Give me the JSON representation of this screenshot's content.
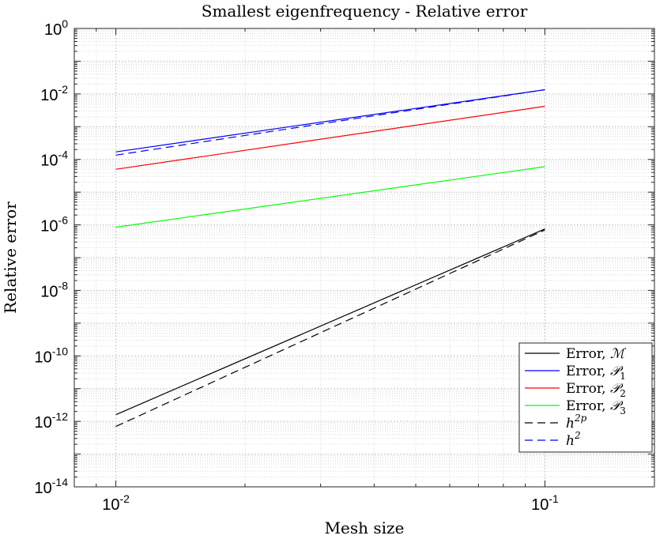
{
  "chart_data": {
    "type": "line",
    "title": "Smallest eigenfrequency - Relative error",
    "xlabel": "Mesh size",
    "ylabel": "Relative error",
    "xscale": "log",
    "yscale": "log",
    "xlim": [
      0.008,
      0.18
    ],
    "ylim": [
      1e-14,
      1
    ],
    "grid": true,
    "minor_grid": true,
    "legend_location": "bottom-right",
    "x_tick_labels": [
      {
        "value": 0.01,
        "base": "10",
        "exp": "-2"
      },
      {
        "value": 0.1,
        "base": "10",
        "exp": "-1"
      }
    ],
    "y_tick_labels": [
      {
        "value": 1,
        "base": "10",
        "exp": "0"
      },
      {
        "value": 0.01,
        "base": "10",
        "exp": "-2"
      },
      {
        "value": 0.0001,
        "base": "10",
        "exp": "-4"
      },
      {
        "value": 1e-06,
        "base": "10",
        "exp": "-6"
      },
      {
        "value": 1e-08,
        "base": "10",
        "exp": "-8"
      },
      {
        "value": 1e-10,
        "base": "10",
        "exp": "-10"
      },
      {
        "value": 1e-12,
        "base": "10",
        "exp": "-12"
      },
      {
        "value": 1e-14,
        "base": "10",
        "exp": "-14"
      }
    ],
    "series": [
      {
        "name": "Error, ℳ",
        "label_text": "Error,",
        "symbol": "ℳ",
        "subscript": "",
        "superscript": "",
        "color": "#000000",
        "dash": "solid",
        "x": [
          0.01,
          0.1
        ],
        "y": [
          1.6e-12,
          7.5e-07
        ]
      },
      {
        "name": "Error, 𝒫1",
        "label_text": "Error,",
        "symbol": "𝒫",
        "subscript": "1",
        "superscript": "",
        "color": "#0000ff",
        "dash": "solid",
        "x": [
          0.01,
          0.1
        ],
        "y": [
          0.00017,
          0.0135
        ]
      },
      {
        "name": "Error, 𝒫2",
        "label_text": "Error,",
        "symbol": "𝒫",
        "subscript": "2",
        "superscript": "",
        "color": "#ff0000",
        "dash": "solid",
        "x": [
          0.01,
          0.1
        ],
        "y": [
          5e-05,
          0.0042
        ]
      },
      {
        "name": "Error, 𝒫3",
        "label_text": "Error,",
        "symbol": "𝒫",
        "subscript": "3",
        "superscript": "",
        "color": "#00ff00",
        "dash": "solid",
        "x": [
          0.01,
          0.1
        ],
        "y": [
          8.5e-07,
          6e-05
        ]
      },
      {
        "name": "h^2p",
        "label_text": "",
        "symbol": "h",
        "subscript": "",
        "superscript": "2p",
        "color": "#000000",
        "dash": "dashed",
        "x": [
          0.01,
          0.1
        ],
        "y": [
          7e-13,
          7e-07
        ]
      },
      {
        "name": "h^2",
        "label_text": "",
        "symbol": "h",
        "subscript": "",
        "superscript": "2",
        "color": "#0000ff",
        "dash": "dashed",
        "x": [
          0.01,
          0.1
        ],
        "y": [
          0.000135,
          0.0135
        ]
      }
    ]
  }
}
